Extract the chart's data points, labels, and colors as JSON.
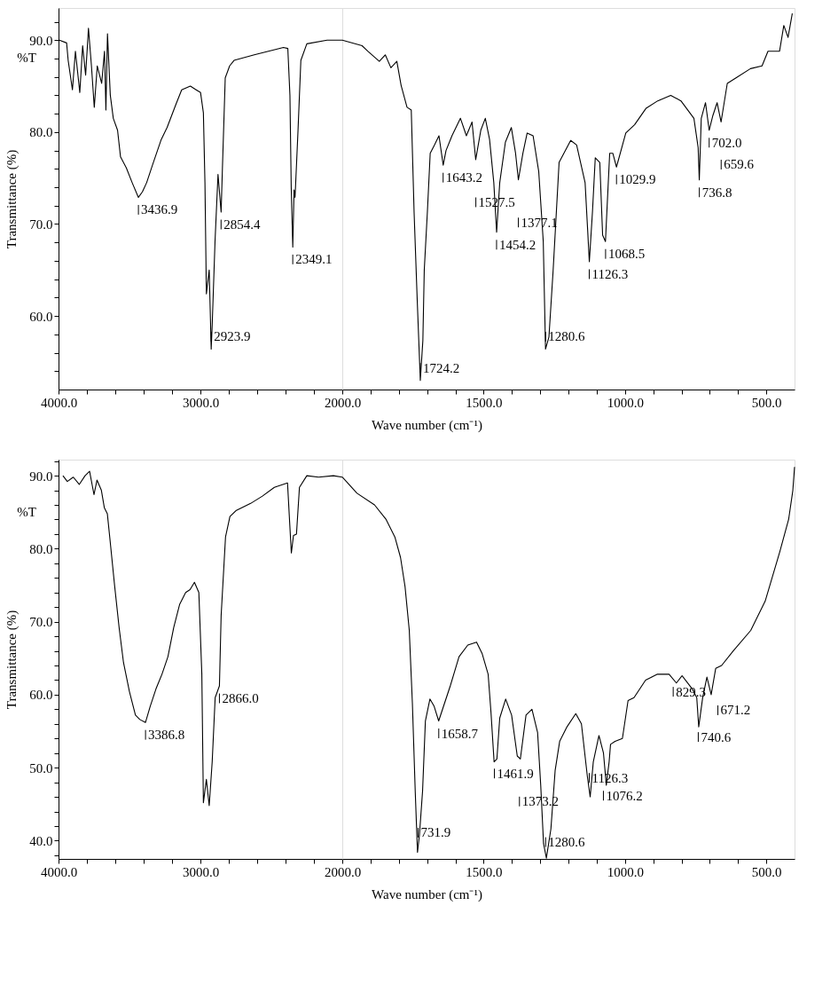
{
  "chart_data": [
    {
      "type": "line",
      "xlabel": "Wave number (cm⁻¹)",
      "ylabel": "Transmittance (%)",
      "grid": false,
      "marker": "none",
      "line_style": "solid",
      "xlim": [
        4000,
        2000
      ],
      "xticks": [
        {
          "value": 4000,
          "label": "4000.0"
        },
        {
          "value": 3800,
          "label": null
        },
        {
          "value": 3600,
          "label": null
        },
        {
          "value": 3400,
          "label": null
        },
        {
          "value": 3200,
          "label": null
        },
        {
          "value": 3000,
          "label": "3000.0"
        },
        {
          "value": 2800,
          "label": null
        },
        {
          "value": 2600,
          "label": null
        },
        {
          "value": 2400,
          "label": null
        },
        {
          "value": 2200,
          "label": null
        },
        {
          "value": 2000,
          "label": "2000.0"
        }
      ],
      "ylim": [
        52,
        93.5
      ],
      "yticks": [
        {
          "value": 54,
          "label": null
        },
        {
          "value": 56,
          "label": null
        },
        {
          "value": 58,
          "label": null
        },
        {
          "value": 60,
          "label": "60.0"
        },
        {
          "value": 62,
          "label": null
        },
        {
          "value": 64,
          "label": null
        },
        {
          "value": 66,
          "label": null
        },
        {
          "value": 68,
          "label": null
        },
        {
          "value": 70,
          "label": "70.0"
        },
        {
          "value": 72,
          "label": null
        },
        {
          "value": 74,
          "label": null
        },
        {
          "value": 76,
          "label": null
        },
        {
          "value": 78,
          "label": null
        },
        {
          "value": 80,
          "label": "80.0"
        },
        {
          "value": 82,
          "label": null
        },
        {
          "value": 84,
          "label": null
        },
        {
          "value": 86,
          "label": null
        },
        {
          "value": 88,
          "label": null
        },
        {
          "value": 90,
          "label": "90.0"
        },
        {
          "value": 92,
          "label": null
        }
      ],
      "series": [
        {
          "color": "#000000",
          "x": [
            3994,
            3943,
            3932,
            3902,
            3881,
            3850,
            3830,
            3809,
            3789,
            3768,
            3748,
            3727,
            3696,
            3676,
            3666,
            3655,
            3635,
            3614,
            3584,
            3563,
            3522,
            3481,
            3437,
            3409,
            3379,
            3338,
            3276,
            3235,
            3173,
            3132,
            3071,
            3030,
            2999,
            2979,
            2968,
            2958,
            2938,
            2924,
            2917,
            2897,
            2876,
            2854,
            2845,
            2825,
            2794,
            2763,
            2620,
            2415,
            2384,
            2369,
            2360,
            2349,
            2340,
            2333,
            2312,
            2292,
            2250,
            2107,
            2000
          ],
          "values": [
            90.0,
            89.7,
            87.8,
            84.6,
            88.8,
            84.3,
            89.4,
            86.2,
            91.3,
            87.2,
            82.7,
            87.2,
            85.3,
            88.8,
            82.4,
            90.7,
            84.0,
            81.5,
            80.2,
            77.3,
            76.1,
            74.5,
            72.9,
            73.5,
            74.5,
            76.4,
            79.2,
            80.5,
            83.0,
            84.6,
            85.0,
            84.6,
            84.3,
            82.1,
            74.5,
            62.4,
            65.0,
            56.4,
            59.0,
            68.1,
            75.4,
            71.3,
            76.0,
            85.9,
            87.2,
            87.8,
            88.4,
            89.2,
            89.1,
            84.0,
            74.0,
            67.5,
            73.7,
            72.9,
            80.2,
            87.8,
            89.6,
            90.0,
            90.0
          ]
        }
      ],
      "annotations": [
        "%T",
        {
          "text": "3436.9",
          "x": 3436.9,
          "y": 72.9
        },
        {
          "text": "2923.9",
          "x": 2923.9,
          "y": 56.4
        },
        {
          "text": "2854.4",
          "x": 2854.4,
          "y": 71.3
        },
        {
          "text": "2349.1",
          "x": 2349.1,
          "y": 67.5
        }
      ]
    },
    {
      "type": "line",
      "grid": false,
      "marker": "none",
      "line_style": "solid",
      "tick_labels": "x",
      "xlim": [
        2000,
        400
      ],
      "xticks": [
        {
          "value": 1900,
          "label": null
        },
        {
          "value": 1800,
          "label": null
        },
        {
          "value": 1700,
          "label": null
        },
        {
          "value": 1600,
          "label": null
        },
        {
          "value": 1500,
          "label": "1500.0"
        },
        {
          "value": 1400,
          "label": null
        },
        {
          "value": 1300,
          "label": null
        },
        {
          "value": 1200,
          "label": null
        },
        {
          "value": 1100,
          "label": null
        },
        {
          "value": 1000,
          "label": "1000.0"
        },
        {
          "value": 900,
          "label": null
        },
        {
          "value": 800,
          "label": null
        },
        {
          "value": 700,
          "label": null
        },
        {
          "value": 600,
          "label": null
        },
        {
          "value": 500,
          "label": "500.0"
        }
      ],
      "ylim": [
        52,
        93.5
      ],
      "series": [
        {
          "color": "#000000",
          "x": [
            2000,
            1930,
            1910,
            1869,
            1848,
            1828,
            1807,
            1792,
            1771,
            1756,
            1746,
            1735,
            1724,
            1715,
            1710,
            1699,
            1689,
            1674,
            1658,
            1643,
            1633,
            1612,
            1582,
            1561,
            1541,
            1528,
            1510,
            1494,
            1479,
            1464,
            1454,
            1443,
            1423,
            1402,
            1387,
            1377,
            1361,
            1346,
            1325,
            1305,
            1289,
            1281,
            1269,
            1254,
            1233,
            1192,
            1171,
            1141,
            1126,
            1115,
            1105,
            1089,
            1079,
            1069,
            1064,
            1054,
            1043,
            1030,
            997,
            966,
            925,
            884,
            838,
            802,
            756,
            741,
            737,
            730,
            715,
            702,
            689,
            674,
            660,
            638,
            607,
            556,
            515,
            494,
            453,
            438,
            423,
            408
          ],
          "values": [
            90.0,
            89.4,
            88.8,
            87.7,
            88.4,
            87.0,
            87.7,
            85.1,
            82.7,
            82.4,
            71.3,
            61.8,
            53.0,
            57.3,
            65.0,
            71.3,
            77.7,
            78.6,
            79.6,
            76.4,
            78.0,
            79.6,
            81.5,
            79.6,
            81.1,
            77.0,
            80.2,
            81.5,
            79.2,
            74.5,
            69.1,
            74.5,
            78.9,
            80.5,
            77.7,
            74.8,
            77.7,
            79.9,
            79.6,
            75.7,
            68.1,
            56.4,
            57.7,
            65.0,
            76.7,
            79.1,
            78.6,
            74.5,
            65.9,
            71.3,
            77.2,
            76.7,
            68.8,
            68.1,
            71.3,
            77.7,
            77.7,
            76.2,
            79.9,
            80.8,
            82.6,
            83.4,
            84.0,
            83.4,
            81.5,
            78.3,
            74.8,
            81.5,
            83.2,
            80.2,
            81.8,
            83.2,
            81.1,
            85.3,
            85.9,
            86.9,
            87.2,
            88.8,
            88.8,
            91.6,
            90.3,
            92.9
          ]
        }
      ],
      "annotations": [
        {
          "text": "1724.2",
          "x": 1724.2,
          "y": 53.0
        },
        {
          "text": "1643.2",
          "x": 1643.2,
          "y": 76.4
        },
        {
          "text": "1527.5",
          "x": 1527.5,
          "y": 77.0
        },
        {
          "text": "1454.2",
          "x": 1454.2,
          "y": 69.1
        },
        {
          "text": "1377.1",
          "x": 1377.1,
          "y": 74.8
        },
        {
          "text": "1280.6",
          "x": 1280.6,
          "y": 56.4
        },
        {
          "text": "1126.3",
          "x": 1126.3,
          "y": 65.9
        },
        {
          "text": "1068.5",
          "x": 1068.5,
          "y": 68.1
        },
        {
          "text": "1029.9",
          "x": 1029.9,
          "y": 76.2
        },
        {
          "text": "736.8",
          "x": 736.8,
          "y": 74.8
        },
        {
          "text": "702.0",
          "x": 702.0,
          "y": 80.2
        },
        {
          "text": "659.6",
          "x": 659.6,
          "y": 81.1
        }
      ]
    },
    {
      "type": "line",
      "xlabel": "Wave number (cm⁻¹)",
      "ylabel": "Transmittance (%)",
      "grid": false,
      "marker": "none",
      "line_style": "solid",
      "xlim": [
        4000,
        2000
      ],
      "xticks": [
        {
          "value": 4000,
          "label": "4000.0"
        },
        {
          "value": 3800,
          "label": null
        },
        {
          "value": 3600,
          "label": null
        },
        {
          "value": 3400,
          "label": null
        },
        {
          "value": 3200,
          "label": null
        },
        {
          "value": 3000,
          "label": "3000.0"
        },
        {
          "value": 2800,
          "label": null
        },
        {
          "value": 2600,
          "label": null
        },
        {
          "value": 2400,
          "label": null
        },
        {
          "value": 2200,
          "label": null
        },
        {
          "value": 2000,
          "label": "2000.0"
        }
      ],
      "ylim": [
        37.5,
        92.2
      ],
      "yticks": [
        {
          "value": 38,
          "label": null
        },
        {
          "value": 40,
          "label": "40.0"
        },
        {
          "value": 42,
          "label": null
        },
        {
          "value": 44,
          "label": null
        },
        {
          "value": 46,
          "label": null
        },
        {
          "value": 48,
          "label": null
        },
        {
          "value": 50,
          "label": "50.0"
        },
        {
          "value": 52,
          "label": null
        },
        {
          "value": 54,
          "label": null
        },
        {
          "value": 56,
          "label": null
        },
        {
          "value": 58,
          "label": null
        },
        {
          "value": 60,
          "label": "60.0"
        },
        {
          "value": 62,
          "label": null
        },
        {
          "value": 64,
          "label": null
        },
        {
          "value": 66,
          "label": null
        },
        {
          "value": 68,
          "label": null
        },
        {
          "value": 70,
          "label": "70.0"
        },
        {
          "value": 72,
          "label": null
        },
        {
          "value": 74,
          "label": null
        },
        {
          "value": 76,
          "label": null
        },
        {
          "value": 78,
          "label": null
        },
        {
          "value": 80,
          "label": "80.0"
        },
        {
          "value": 82,
          "label": null
        },
        {
          "value": 84,
          "label": null
        },
        {
          "value": 86,
          "label": null
        },
        {
          "value": 88,
          "label": null
        },
        {
          "value": 90,
          "label": "90.0"
        },
        {
          "value": 92,
          "label": null
        }
      ],
      "series": [
        {
          "color": "#000000",
          "x": [
            3969,
            3938,
            3896,
            3854,
            3813,
            3781,
            3750,
            3729,
            3698,
            3677,
            3656,
            3635,
            3604,
            3573,
            3542,
            3500,
            3458,
            3427,
            3387,
            3354,
            3313,
            3271,
            3229,
            3188,
            3146,
            3104,
            3073,
            3042,
            3011,
            2990,
            2979,
            2958,
            2938,
            2917,
            2896,
            2866,
            2854,
            2823,
            2792,
            2750,
            2646,
            2563,
            2479,
            2386,
            2371,
            2359,
            2344,
            2323,
            2302,
            2250,
            2167,
            2063,
            2000
          ],
          "values": [
            90.0,
            89.2,
            89.8,
            88.8,
            90.0,
            90.6,
            87.4,
            89.4,
            88.0,
            85.6,
            84.8,
            80.8,
            74.8,
            69.2,
            64.4,
            60.4,
            57.2,
            56.6,
            56.2,
            58.4,
            60.8,
            62.8,
            65.2,
            69.2,
            72.4,
            74.0,
            74.4,
            75.4,
            74.0,
            62.8,
            45.2,
            48.4,
            44.8,
            50.8,
            59.6,
            61.2,
            70.8,
            81.6,
            84.4,
            85.2,
            86.2,
            87.2,
            88.4,
            89.0,
            83.6,
            79.4,
            81.8,
            82.0,
            88.4,
            90.0,
            89.8,
            90.0,
            89.8
          ]
        }
      ],
      "annotations": [
        "%T",
        {
          "text": "3386.8",
          "x": 3386.8,
          "y": 56.2
        },
        {
          "text": "2866.0",
          "x": 2866.0,
          "y": 61.2
        }
      ]
    },
    {
      "type": "line",
      "grid": false,
      "marker": "none",
      "line_style": "solid",
      "tick_labels": "x",
      "xlim": [
        2000,
        400
      ],
      "xticks": [
        {
          "value": 1900,
          "label": null
        },
        {
          "value": 1800,
          "label": null
        },
        {
          "value": 1700,
          "label": null
        },
        {
          "value": 1600,
          "label": null
        },
        {
          "value": 1500,
          "label": "1500.0"
        },
        {
          "value": 1400,
          "label": null
        },
        {
          "value": 1300,
          "label": null
        },
        {
          "value": 1200,
          "label": null
        },
        {
          "value": 1100,
          "label": null
        },
        {
          "value": 1000,
          "label": "1000.0"
        },
        {
          "value": 900,
          "label": null
        },
        {
          "value": 800,
          "label": null
        },
        {
          "value": 700,
          "label": null
        },
        {
          "value": 600,
          "label": null
        },
        {
          "value": 500,
          "label": "500.0"
        }
      ],
      "ylim": [
        37.5,
        92.2
      ],
      "series": [
        {
          "color": "#000000",
          "x": [
            2000,
            1948,
            1886,
            1845,
            1814,
            1794,
            1778,
            1763,
            1752,
            1742,
            1734,
            1727,
            1716,
            1706,
            1690,
            1675,
            1659,
            1618,
            1587,
            1556,
            1525,
            1505,
            1484,
            1474,
            1463,
            1453,
            1443,
            1422,
            1401,
            1381,
            1370,
            1350,
            1329,
            1309,
            1298,
            1288,
            1278,
            1262,
            1247,
            1231,
            1205,
            1174,
            1154,
            1133,
            1123,
            1112,
            1092,
            1076,
            1066,
            1056,
            1051,
            1035,
            1009,
            989,
            968,
            927,
            885,
            844,
            818,
            798,
            762,
            746,
            739,
            725,
            710,
            695,
            679,
            658,
            617,
            555,
            504,
            452,
            421,
            406,
            400
          ],
          "values": [
            89.8,
            87.6,
            86.0,
            84.0,
            81.6,
            78.8,
            74.8,
            68.8,
            58.8,
            46.8,
            38.4,
            40.8,
            46.8,
            56.4,
            59.4,
            58.4,
            56.4,
            61.2,
            65.2,
            66.8,
            67.2,
            65.6,
            62.8,
            57.6,
            50.8,
            51.2,
            56.8,
            59.4,
            57.2,
            51.6,
            51.2,
            57.2,
            58.0,
            54.8,
            47.6,
            39.6,
            37.6,
            41.6,
            49.6,
            53.6,
            55.6,
            57.4,
            56.0,
            48.8,
            46.0,
            50.8,
            54.4,
            52.0,
            47.6,
            50.8,
            53.2,
            53.6,
            54.0,
            59.2,
            59.6,
            62.0,
            62.8,
            62.8,
            61.6,
            62.6,
            60.8,
            59.6,
            55.6,
            59.6,
            62.4,
            60.0,
            63.6,
            64.0,
            66.0,
            68.8,
            72.8,
            79.6,
            84.0,
            88.0,
            91.2
          ]
        }
      ],
      "annotations": [
        {
          "text": "731.9",
          "x": 1731.9,
          "y": 39.4
        },
        {
          "text": "1658.7",
          "x": 1658.7,
          "y": 56.4
        },
        {
          "text": "1461.9",
          "x": 1461.9,
          "y": 50.9
        },
        {
          "text": "1373.2",
          "x": 1373.2,
          "y": 51.2
        },
        {
          "text": "1280.6",
          "x": 1280.6,
          "y": 38.1
        },
        {
          "text": "1126.3",
          "x": 1126.3,
          "y": 46.9
        },
        {
          "text": "1076.2",
          "x": 1076.2,
          "y": 52.0
        },
        {
          "text": "829.3",
          "x": 829.3,
          "y": 62.1
        },
        {
          "text": "740.6",
          "x": 740.6,
          "y": 55.9
        },
        {
          "text": "671.2",
          "x": 671.2,
          "y": 63.7
        }
      ]
    }
  ]
}
